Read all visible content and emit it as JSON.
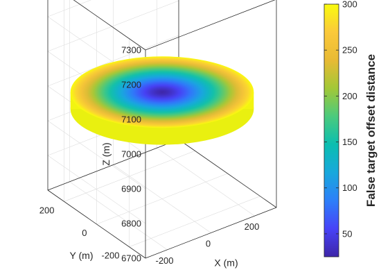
{
  "chart_data": {
    "type": "surface3d",
    "title": "",
    "xlabel": "X (m)",
    "ylabel": "Y (m)",
    "zlabel": "Z (m)",
    "x_ticks": [
      -200,
      0,
      200
    ],
    "y_ticks": [
      -200,
      0,
      200
    ],
    "z_ticks": [
      6700,
      6800,
      6900,
      7000,
      7100,
      7200,
      7300
    ],
    "xlim": [
      -300,
      300
    ],
    "ylim": [
      -300,
      300
    ],
    "zlim": [
      6700,
      7300
    ],
    "grid": true,
    "surface": {
      "shape": "spherical cap (ellipsoidal disc)",
      "center": [
        0,
        0,
        7000
      ],
      "radius": 300,
      "z_range": [
        6950,
        7025
      ],
      "color_range": [
        25,
        300
      ],
      "color_at_center": 25,
      "color_at_rim": 300
    },
    "colorbar": {
      "label": "False target offset distance",
      "range": [
        25,
        300
      ],
      "ticks": [
        50,
        100,
        150,
        200,
        250,
        300
      ],
      "colormap": "parula",
      "colors": [
        "#3e26a8",
        "#4743f8",
        "#2d7ff9",
        "#18a8dc",
        "#0bbeb0",
        "#4bca7d",
        "#a2c837",
        "#e8ba34",
        "#fbc93b",
        "#f9fb0e"
      ]
    }
  }
}
